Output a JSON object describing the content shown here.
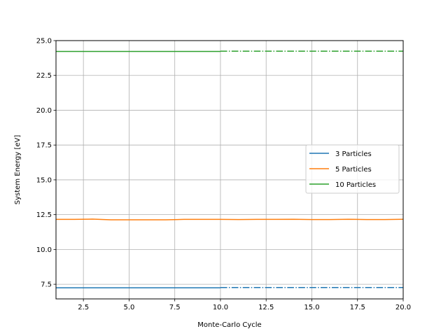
{
  "chart_data": {
    "type": "line",
    "title": "",
    "xlabel": "Monte-Carlo Cycle",
    "ylabel": "System Energy [eV]",
    "xlim": [
      1,
      20
    ],
    "ylim": [
      6.45,
      25.0
    ],
    "xticks": [
      2.5,
      5.0,
      7.5,
      10.0,
      12.5,
      15.0,
      17.5,
      20.0
    ],
    "xtick_labels": [
      "2.5",
      "5.0",
      "7.5",
      "10.0",
      "12.5",
      "15.0",
      "17.5",
      "20.0"
    ],
    "yticks": [
      7.5,
      10.0,
      12.5,
      15.0,
      17.5,
      20.0,
      22.5,
      25.0
    ],
    "ytick_labels": [
      "7.5",
      "10.0",
      "12.5",
      "15.0",
      "17.5",
      "20.0",
      "22.5",
      "25.0"
    ],
    "grid": true,
    "legend_position": "center-right",
    "series": [
      {
        "name": "3 Particles",
        "color": "#1f77b4",
        "x": [
          1,
          2,
          3,
          4,
          5,
          6,
          7,
          8,
          9,
          10
        ],
        "y": [
          7.25,
          7.25,
          7.25,
          7.25,
          7.25,
          7.25,
          7.25,
          7.25,
          7.25,
          7.25
        ],
        "extension": {
          "x": [
            10,
            20
          ],
          "y": [
            7.27,
            7.27
          ],
          "style": "dashdot"
        }
      },
      {
        "name": "5 Particles",
        "color": "#ff7f0e",
        "x": [
          1,
          2,
          3,
          4,
          5,
          6,
          7,
          8,
          9,
          10,
          11,
          12,
          13,
          14,
          15,
          16,
          17,
          18,
          19,
          20
        ],
        "y": [
          12.16,
          12.16,
          12.18,
          12.13,
          12.13,
          12.13,
          12.13,
          12.16,
          12.16,
          12.16,
          12.15,
          12.16,
          12.16,
          12.17,
          12.15,
          12.15,
          12.17,
          12.15,
          12.15,
          12.17
        ]
      },
      {
        "name": "10 Particles",
        "color": "#2ca02c",
        "x": [
          1,
          2,
          3,
          4,
          5,
          6,
          7,
          8,
          9,
          10
        ],
        "y": [
          24.22,
          24.22,
          24.22,
          24.22,
          24.22,
          24.22,
          24.22,
          24.22,
          24.22,
          24.22
        ],
        "extension": {
          "x": [
            10,
            20
          ],
          "y": [
            24.24,
            24.24
          ],
          "style": "dashdot"
        }
      }
    ]
  }
}
